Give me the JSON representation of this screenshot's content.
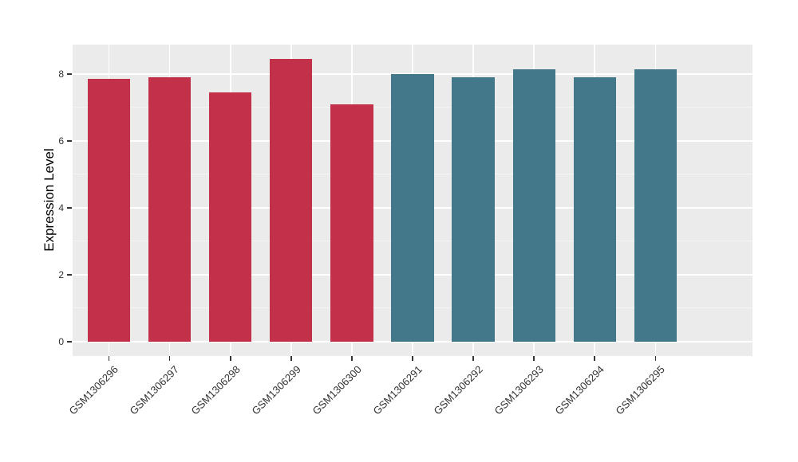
{
  "chart_data": {
    "type": "bar",
    "title": "",
    "xlabel": "",
    "ylabel": "Expression Level",
    "categories": [
      "GSM1306296",
      "GSM1306297",
      "GSM1306298",
      "GSM1306299",
      "GSM1306300",
      "GSM1306291",
      "GSM1306292",
      "GSM1306293",
      "GSM1306294",
      "GSM1306295"
    ],
    "values": [
      7.85,
      7.9,
      7.45,
      8.45,
      7.1,
      8.0,
      7.9,
      8.13,
      7.9,
      8.13
    ],
    "bar_colors": [
      "#C2304A",
      "#C2304A",
      "#C2304A",
      "#C2304A",
      "#C2304A",
      "#43788A",
      "#43788A",
      "#43788A",
      "#43788A",
      "#43788A"
    ],
    "yticks": [
      0,
      2,
      4,
      6,
      8
    ],
    "yticks_minor": [
      1,
      3,
      5,
      7
    ],
    "ylim": [
      -0.43,
      8.88
    ],
    "bar_width_fraction": 0.7,
    "grid": true,
    "legend": false,
    "colors": {
      "panel_background": "#EBEBEB",
      "gridline_major": "#FFFFFF",
      "gridline_minor": "#F5F5F5",
      "tick_mark": "#333333",
      "tick_text": "#333333",
      "axis_title_text": "#000000",
      "bar_group_left": "#C2304A",
      "bar_group_right": "#43788A"
    }
  }
}
